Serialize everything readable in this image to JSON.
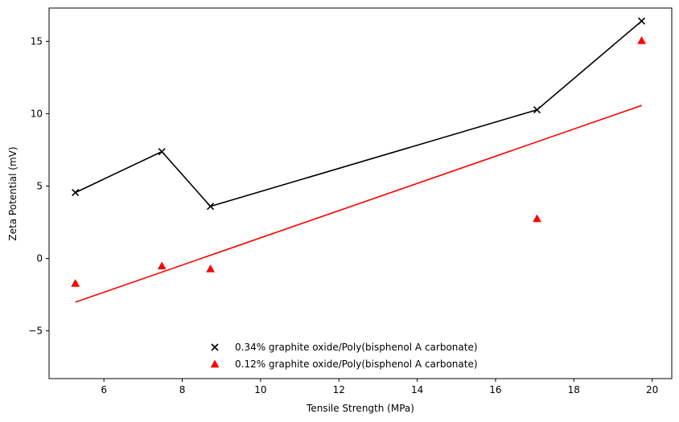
{
  "chart_data": {
    "type": "scatter",
    "xlabel": "Tensile Strength (MPa)",
    "ylabel": "Zeta Potential (mV)",
    "xlim": [
      4.6,
      20.5
    ],
    "ylim": [
      -8.3,
      17.3
    ],
    "xticks": [
      6,
      8,
      10,
      12,
      14,
      16,
      18,
      20
    ],
    "yticks": [
      -5,
      0,
      5,
      10,
      15
    ],
    "ytick_labels": [
      "−5",
      "0",
      "5",
      "10",
      "15"
    ],
    "grid": false,
    "legend_position": "bottom-center",
    "series": [
      {
        "name": "0.34% graphite oxide/Poly(bisphenol A carbonate)",
        "marker": "x",
        "color": "#000000",
        "x": [
          5.27,
          7.48,
          8.72,
          17.06,
          19.73
        ],
        "y": [
          4.55,
          7.38,
          3.6,
          10.27,
          16.4
        ],
        "line": {
          "kind": "connect",
          "x": [
            5.27,
            7.48,
            8.72,
            17.06,
            19.73
          ],
          "y": [
            4.55,
            7.38,
            3.6,
            10.27,
            16.4
          ]
        }
      },
      {
        "name": "0.12% graphite oxide/Poly(bisphenol A carbonate)",
        "marker": "triangle",
        "color": "#ff0000",
        "x": [
          5.27,
          7.48,
          8.72,
          17.06,
          19.73
        ],
        "y": [
          -1.72,
          -0.52,
          -0.72,
          2.75,
          15.05
        ],
        "line": {
          "kind": "fit",
          "x": [
            5.27,
            19.73
          ],
          "y": [
            -3.02,
            10.57
          ]
        }
      }
    ]
  }
}
